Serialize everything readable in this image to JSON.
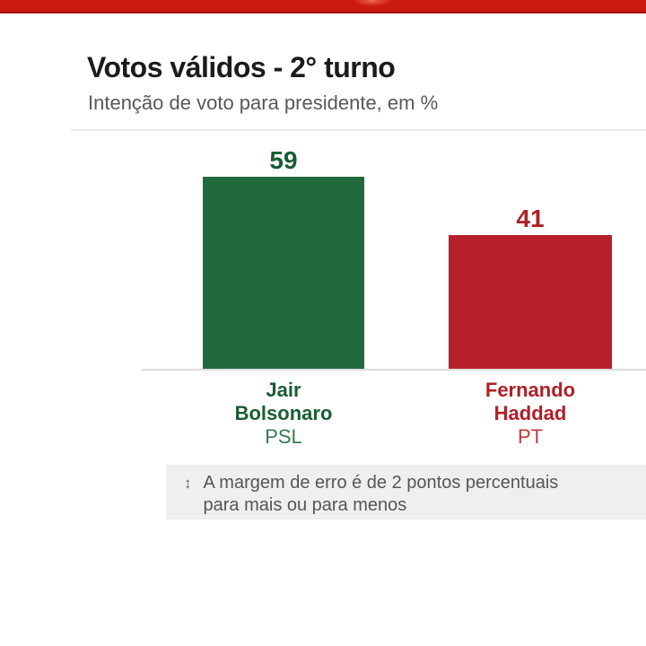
{
  "top_bar": {
    "color": "#cb1a10"
  },
  "header": {
    "title": "Votos válidos - 2° turno",
    "subtitle": "Intenção de voto para presidente, em %"
  },
  "chart_data": {
    "type": "bar",
    "title": "Votos válidos - 2° turno",
    "subtitle": "Intenção de voto para presidente, em %",
    "unit": "%",
    "categories": [
      "Jair Bolsonaro",
      "Fernando Haddad"
    ],
    "parties": [
      "PSL",
      "PT"
    ],
    "values": [
      59,
      41
    ],
    "bar_colors": [
      "#20693d",
      "#b7202a"
    ],
    "value_label_colors": [
      "#195c33",
      "#ae1f27"
    ],
    "category_label_colors": [
      "#1a5c33",
      "#b01f27"
    ],
    "party_label_colors": [
      "#357a52",
      "#bf3a42"
    ],
    "ylim": [
      0,
      63
    ],
    "grid": false,
    "legend": "none",
    "baseline_color": "#dcdcdc"
  },
  "bars": [
    {
      "value": "59",
      "name_line1": "Jair",
      "name_line2": "Bolsonaro",
      "party": "PSL"
    },
    {
      "value": "41",
      "name_line1": "Fernando",
      "name_line2": "Haddad",
      "party": "PT"
    }
  ],
  "footnote": {
    "icon": "↕",
    "line1": "A margem de erro é de 2 pontos percentuais",
    "line2": "para mais ou para menos"
  }
}
